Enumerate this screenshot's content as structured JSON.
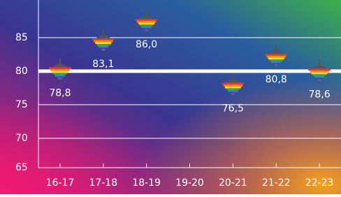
{
  "chart_data": {
    "type": "marker",
    "categories": [
      "16-17",
      "17-18",
      "18-19",
      "19-20",
      "20-21",
      "21-22",
      "22-23"
    ],
    "values": [
      78.8,
      83.1,
      86.0,
      null,
      76.5,
      80.8,
      78.6
    ],
    "value_labels": [
      "78,8",
      "83,1",
      "86,0",
      null,
      "76,5",
      "80,8",
      "78,6"
    ],
    "ylim": [
      65,
      90.6
    ],
    "yticks": [
      65,
      70,
      75,
      80,
      85
    ],
    "grid": true,
    "reference_line": 80
  }
}
